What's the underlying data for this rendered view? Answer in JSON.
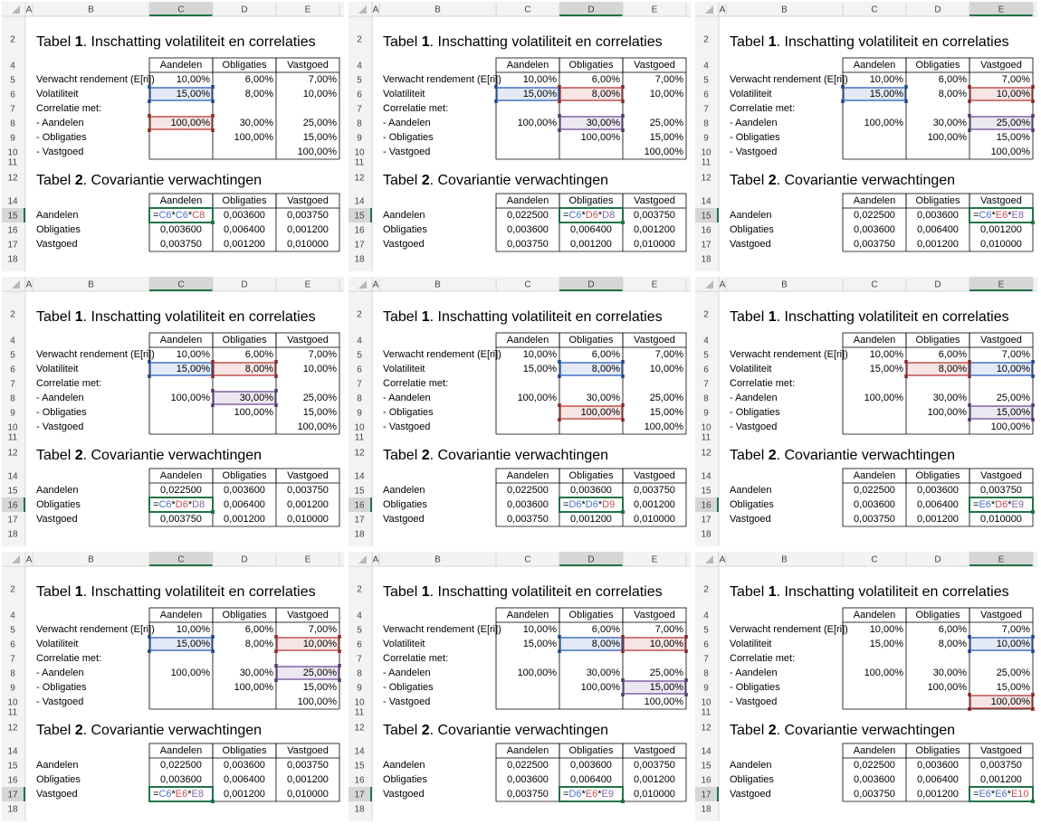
{
  "sheet": {
    "columns": [
      "A",
      "B",
      "C",
      "D",
      "E"
    ],
    "row_numbers": [
      "2",
      "4",
      "5",
      "6",
      "7",
      "8",
      "9",
      "10",
      "11",
      "12",
      "14",
      "15",
      "16",
      "17",
      "18"
    ]
  },
  "reference_colors": [
    "#4472c4",
    "#c0504d",
    "#8064a2"
  ],
  "table1": {
    "title": {
      "prefix": "Tabel ",
      "number": "1",
      "text": ". Inschatting volatiliteit en correlaties"
    },
    "headers": [
      "Aandelen",
      "Obligaties",
      "Vastgoed"
    ],
    "rows": [
      {
        "label": "Verwacht rendement (E[ri])",
        "values": [
          "10,00%",
          "6,00%",
          "7,00%"
        ]
      },
      {
        "label": "Volatiliteit",
        "values": [
          "15,00%",
          "8,00%",
          "10,00%"
        ]
      },
      {
        "label": "Correlatie met:",
        "values": [
          null,
          null,
          null
        ]
      },
      {
        "label": "- Aandelen",
        "values": [
          "100,00%",
          "30,00%",
          "25,00%"
        ]
      },
      {
        "label": "- Obligaties",
        "values": [
          null,
          "100,00%",
          "15,00%"
        ]
      },
      {
        "label": "- Vastgoed",
        "values": [
          null,
          null,
          "100,00%"
        ]
      }
    ]
  },
  "table2": {
    "title": {
      "prefix": "Tabel ",
      "number": "2",
      "text": ". Covariantie verwachtingen"
    },
    "headers": [
      "Aandelen",
      "Obligaties",
      "Vastgoed"
    ],
    "rows": [
      {
        "label": "Aandelen",
        "values": [
          "0,022500",
          "0,003600",
          "0,003750"
        ]
      },
      {
        "label": "Obligaties",
        "values": [
          "0,003600",
          "0,006400",
          "0,001200"
        ]
      },
      {
        "label": "Vastgoed",
        "values": [
          "0,003750",
          "0,001200",
          "0,010000"
        ]
      }
    ]
  },
  "panels": [
    {
      "formula": "=C6*C6*C8"
    },
    {
      "formula": "=C6*D6*D8"
    },
    {
      "formula": "=C6*E6*E8"
    },
    {
      "formula": "=C6*D6*D8"
    },
    {
      "formula": "=D6*D6*D9"
    },
    {
      "formula": "=E6*D6*E9"
    },
    {
      "formula": "=C6*E6*E8"
    },
    {
      "formula": "=D6*E6*E9"
    },
    {
      "formula": "=E6*E6*E10"
    }
  ]
}
